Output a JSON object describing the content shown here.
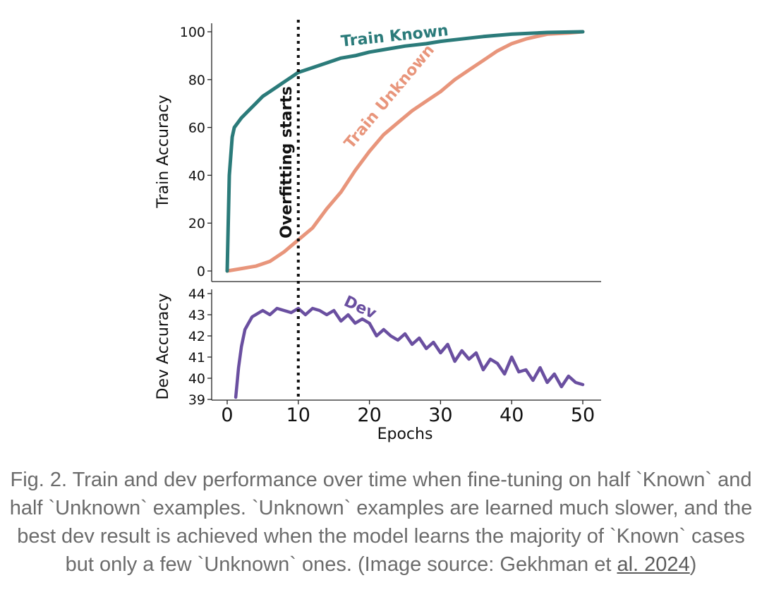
{
  "chart_data": [
    {
      "type": "line",
      "ylabel": "Train Accuracy",
      "ylim": [
        0,
        100
      ],
      "yticks": [
        0,
        20,
        40,
        60,
        80,
        100
      ],
      "xlim": [
        0,
        50
      ],
      "annotation": "Overfitting starts",
      "annotation_x": 10,
      "series": [
        {
          "name": "Train Known",
          "color": "#2b7b7a",
          "x": [
            0,
            0.3,
            0.7,
            1,
            2,
            3,
            4,
            5,
            6,
            7,
            8,
            9,
            10,
            12,
            14,
            16,
            18,
            20,
            22,
            25,
            28,
            30,
            33,
            36,
            40,
            45,
            50
          ],
          "values": [
            0,
            40,
            56,
            60,
            64,
            67,
            70,
            73,
            75,
            77,
            79,
            81,
            83,
            85,
            87,
            89,
            90,
            91.5,
            92.5,
            94,
            95,
            96,
            97,
            98,
            99,
            99.7,
            100
          ]
        },
        {
          "name": "Train Unknown",
          "color": "#e8957b",
          "x": [
            0,
            2,
            4,
            6,
            8,
            10,
            12,
            14,
            16,
            18,
            20,
            22,
            24,
            26,
            28,
            30,
            32,
            34,
            36,
            38,
            40,
            42,
            45,
            48,
            50
          ],
          "values": [
            0,
            1,
            2,
            4,
            8,
            13,
            18,
            26,
            33,
            42,
            50,
            57,
            62,
            67,
            71,
            75,
            80,
            84,
            88,
            92,
            95,
            97,
            99,
            99.5,
            100
          ]
        }
      ]
    },
    {
      "type": "line",
      "ylabel": "Dev Accuracy",
      "ylim": [
        39,
        44
      ],
      "yticks": [
        39,
        40,
        41,
        42,
        43,
        44
      ],
      "xlabel": "Epochs",
      "xticks": [
        0,
        10,
        20,
        30,
        40,
        50
      ],
      "xlim": [
        0,
        50
      ],
      "series": [
        {
          "name": "Dev",
          "color": "#6a4fa0",
          "x": [
            1.2,
            1.6,
            2,
            2.5,
            3,
            3.5,
            4,
            5,
            6,
            7,
            8,
            9,
            10,
            11,
            12,
            13,
            14,
            15,
            16,
            17,
            18,
            19,
            20,
            21,
            22,
            23,
            24,
            25,
            26,
            27,
            28,
            29,
            30,
            31,
            32,
            33,
            34,
            35,
            36,
            37,
            38,
            39,
            40,
            41,
            42,
            43,
            44,
            45,
            46,
            47,
            48,
            49,
            50
          ],
          "values": [
            39.1,
            40.5,
            41.5,
            42.3,
            42.6,
            42.9,
            43.0,
            43.2,
            43.0,
            43.3,
            43.2,
            43.1,
            43.3,
            43.0,
            43.3,
            43.2,
            43.0,
            43.2,
            42.7,
            43.0,
            42.6,
            42.8,
            42.6,
            42.0,
            42.3,
            42.0,
            41.8,
            42.1,
            41.6,
            41.9,
            41.4,
            41.7,
            41.2,
            41.6,
            40.8,
            41.3,
            40.9,
            41.2,
            40.4,
            40.9,
            40.7,
            40.2,
            41.0,
            40.3,
            40.4,
            39.9,
            40.5,
            39.8,
            40.2,
            39.6,
            40.1,
            39.8,
            39.7
          ]
        }
      ]
    }
  ],
  "caption": {
    "text": "Fig. 2. Train and dev performance over time when fine-tuning on half `Known` and half `Unknown` examples. `Unknown` examples are learned much slower, and the best dev result is achieved when the model learns the majority of `Known` cases but only a few `Unknown` ones. (Image source: Gekhman et",
    "link_text": "al. 2024",
    "closing": ")"
  }
}
